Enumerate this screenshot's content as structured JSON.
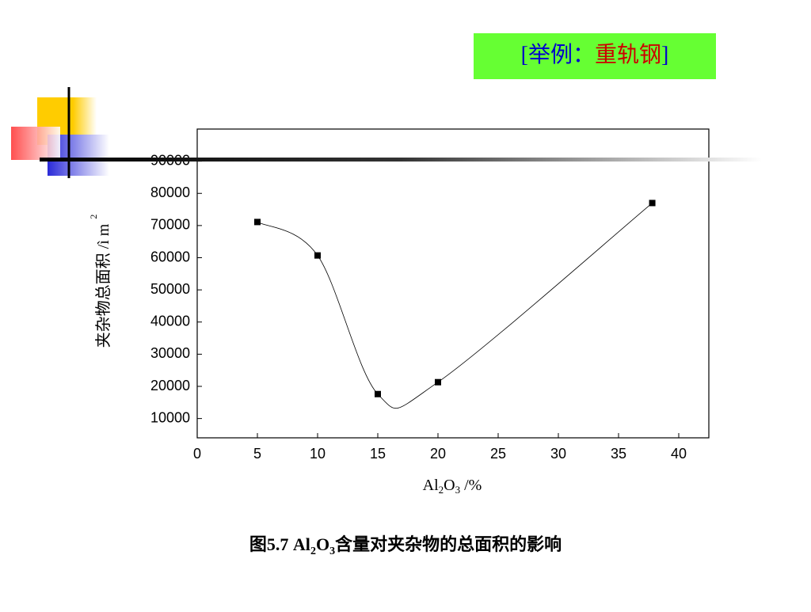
{
  "header": {
    "parts": [
      "[举例：",
      "重轨钢",
      "]"
    ]
  },
  "chart_data": {
    "type": "line",
    "x_label": [
      "Al",
      "2",
      "O",
      "3",
      " /%"
    ],
    "y_label": "夹杂物总面积 /ì m",
    "y_label_sup": "2",
    "x": [
      5,
      10,
      15,
      20,
      37.8
    ],
    "series": [
      {
        "color": "#000000",
        "values": [
          71100,
          60700,
          17600,
          21300,
          77000
        ]
      }
    ],
    "xlim": [
      0,
      42.5
    ],
    "ylim": [
      4000,
      100000
    ],
    "xticks": [
      0,
      5,
      10,
      15,
      20,
      25,
      30,
      35,
      40
    ],
    "yticks": [
      10000,
      20000,
      30000,
      40000,
      50000,
      60000,
      70000,
      80000,
      90000
    ],
    "smooth": true
  },
  "caption": [
    "图5.7  Al",
    "2",
    "O",
    "3",
    "含量对夹杂物的总面积的影响"
  ]
}
